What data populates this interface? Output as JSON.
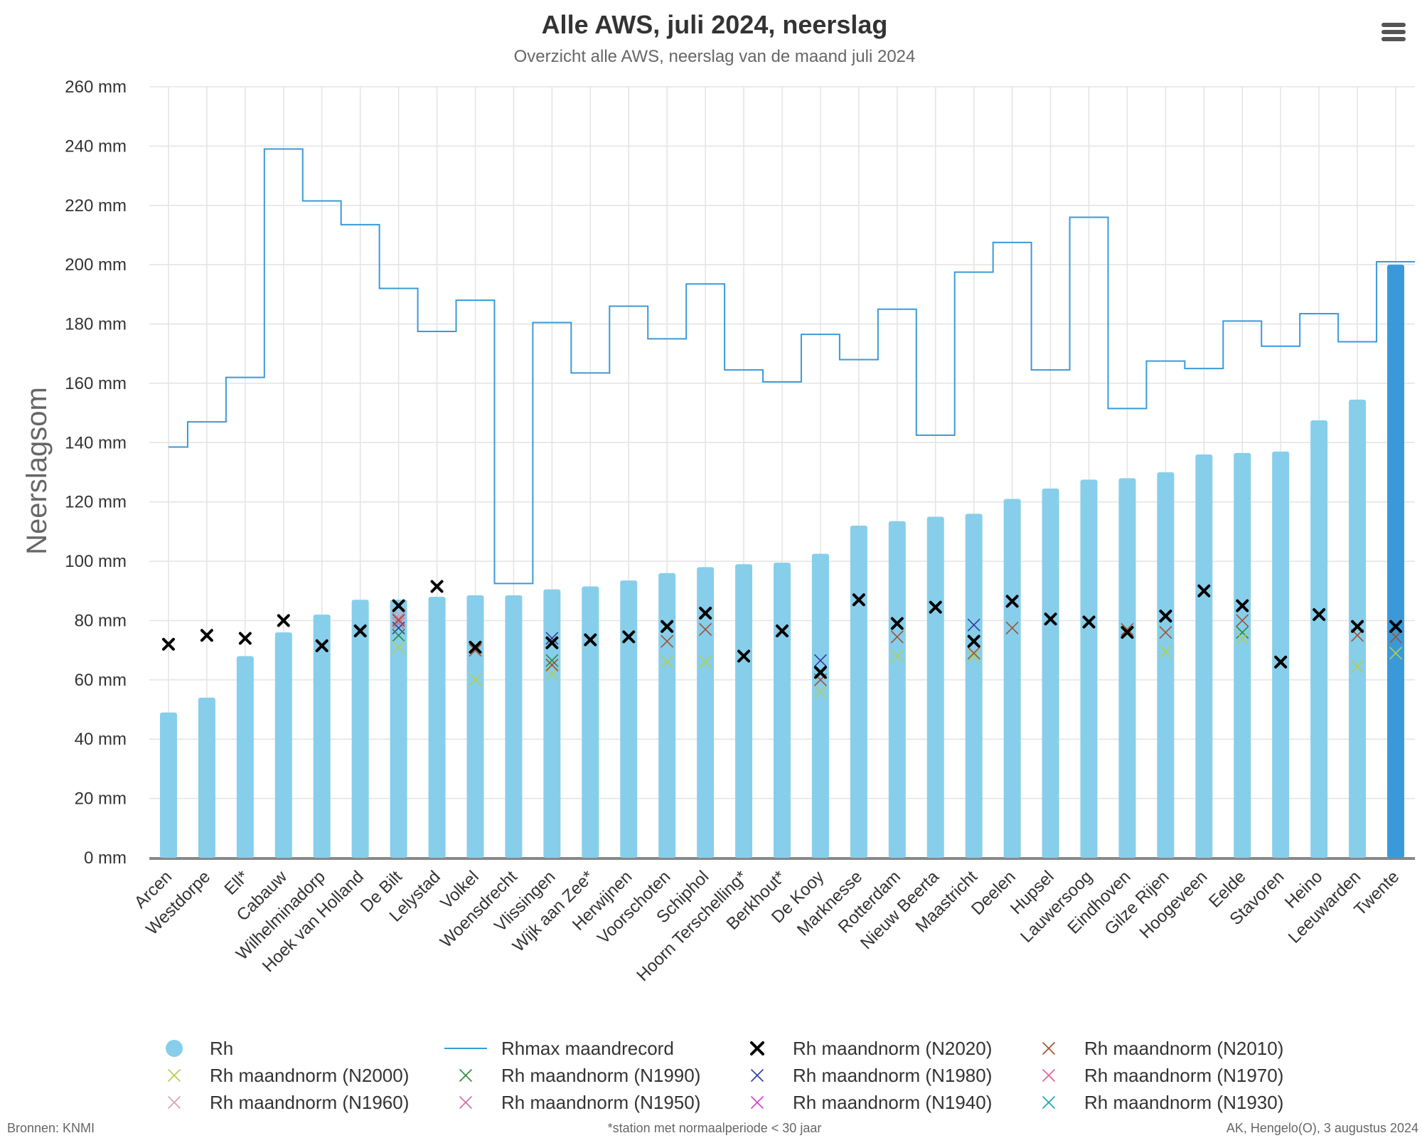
{
  "menu_icon": "hamburger-menu-icon",
  "colors": {
    "bar": "#87ceeb",
    "bar_highlight": "#3a9ad9",
    "record_line": "#3a9ad9",
    "grid": "#e3e3e3"
  },
  "chart_data": {
    "type": "bar",
    "title": "Alle AWS, juli 2024, neerslag",
    "subtitle": "Overzicht alle AWS, neerslag van de maand juli 2024",
    "ylabel": "Neerslagsom",
    "ylim": [
      0,
      260
    ],
    "y_ticks": [
      "0 mm",
      "20 mm",
      "40 mm",
      "60 mm",
      "80 mm",
      "100 mm",
      "120 mm",
      "140 mm",
      "160 mm",
      "180 mm",
      "200 mm",
      "220 mm",
      "240 mm",
      "260 mm"
    ],
    "grid": true,
    "legend_position": "bottom",
    "highlighted_category": "Twente",
    "categories": [
      "Arcen",
      "Westdorpe",
      "Ell*",
      "Cabauw",
      "Wilhelminadorp",
      "Hoek van Holland",
      "De Bilt",
      "Lelystad",
      "Volkel",
      "Woensdrecht",
      "Vlissingen",
      "Wijk aan Zee*",
      "Herwijnen",
      "Voorschoten",
      "Schiphol",
      "Hoorn Terschelling*",
      "Berkhout*",
      "De Kooy",
      "Marknesse",
      "Rotterdam",
      "Nieuw Beerta",
      "Maastricht",
      "Deelen",
      "Hupsel",
      "Lauwersoog",
      "Eindhoven",
      "Gilze Rijen",
      "Hoogeveen",
      "Eelde",
      "Stavoren",
      "Heino",
      "Leeuwarden",
      "Twente"
    ],
    "series": [
      {
        "name": "Rh",
        "kind": "bar",
        "color": "#87ceeb",
        "values": [
          49,
          54,
          68,
          76,
          82,
          87,
          87,
          88,
          88.5,
          88.5,
          90.5,
          91.5,
          93.5,
          96,
          98,
          99,
          99.5,
          102.5,
          112,
          113.5,
          115,
          116,
          121,
          124.5,
          127.5,
          128,
          130,
          136,
          136.5,
          137,
          147.5,
          154.5,
          200
        ]
      },
      {
        "name": "Rhmax maandrecord",
        "kind": "step-line",
        "color": "#3a9ad9",
        "values": [
          138.5,
          147,
          162,
          239,
          221.5,
          213.5,
          192,
          177.5,
          188,
          92.5,
          180.5,
          163.5,
          186,
          175,
          193.5,
          164.5,
          160.5,
          176.5,
          168,
          185,
          142.5,
          197.5,
          207.5,
          164.5,
          216,
          151.5,
          167.5,
          165,
          181,
          172.5,
          183.5,
          174,
          201
        ]
      },
      {
        "name": "Rh maandnorm (N2020)",
        "kind": "marker",
        "color": "#000000",
        "values": [
          72,
          75,
          74,
          80,
          71.5,
          76.5,
          85,
          91.5,
          71,
          null,
          72.5,
          73.5,
          74.5,
          78,
          82.5,
          68,
          76.5,
          62.5,
          87,
          79,
          84.5,
          73,
          86.5,
          80.5,
          79.5,
          76,
          81.5,
          90,
          85,
          66,
          82,
          78,
          78
        ]
      },
      {
        "name": "Rh maandnorm (N2010)",
        "kind": "marker",
        "color": "#a0522d",
        "values": [
          null,
          null,
          null,
          null,
          null,
          null,
          80,
          null,
          70,
          null,
          65,
          null,
          null,
          73,
          77,
          null,
          null,
          60,
          null,
          74.5,
          null,
          69,
          77.5,
          null,
          null,
          77,
          76,
          null,
          80,
          null,
          null,
          75,
          74.5
        ]
      },
      {
        "name": "Rh maandnorm (N2000)",
        "kind": "marker",
        "color": "#b4cf4c",
        "values": [
          null,
          null,
          null,
          null,
          null,
          null,
          71,
          null,
          60,
          null,
          62,
          null,
          null,
          66,
          66,
          null,
          null,
          56,
          null,
          68,
          null,
          68,
          null,
          null,
          null,
          null,
          69.5,
          null,
          74,
          null,
          null,
          64.5,
          69
        ]
      },
      {
        "name": "Rh maandnorm (N1990)",
        "kind": "marker",
        "color": "#2e8b3a",
        "values": [
          null,
          null,
          null,
          null,
          null,
          null,
          75,
          null,
          null,
          null,
          66.5,
          null,
          null,
          null,
          null,
          null,
          null,
          null,
          null,
          null,
          null,
          null,
          null,
          null,
          null,
          null,
          null,
          null,
          76,
          null,
          null,
          null,
          null
        ]
      },
      {
        "name": "Rh maandnorm (N1980)",
        "kind": "marker",
        "color": "#2f3c9e",
        "values": [
          null,
          null,
          null,
          null,
          null,
          null,
          77.5,
          null,
          null,
          null,
          74,
          null,
          null,
          null,
          null,
          null,
          null,
          66.5,
          null,
          null,
          null,
          78.5,
          null,
          null,
          null,
          null,
          null,
          null,
          null,
          null,
          null,
          null,
          null
        ]
      },
      {
        "name": "Rh maandnorm (N1970)",
        "kind": "marker",
        "color": "#e0609a",
        "values": [
          null,
          null,
          null,
          null,
          null,
          null,
          80.5,
          null,
          null,
          null,
          null,
          null,
          null,
          null,
          null,
          null,
          null,
          null,
          null,
          null,
          null,
          null,
          null,
          null,
          null,
          null,
          null,
          null,
          null,
          null,
          null,
          null,
          null
        ]
      },
      {
        "name": "Rh maandnorm (N1960)",
        "kind": "marker",
        "color": "#d9a0b0",
        "values": [
          null,
          null,
          null,
          null,
          null,
          null,
          82,
          null,
          null,
          null,
          null,
          null,
          null,
          null,
          null,
          null,
          null,
          null,
          null,
          null,
          null,
          null,
          null,
          null,
          null,
          null,
          null,
          null,
          null,
          null,
          null,
          null,
          null
        ]
      },
      {
        "name": "Rh maandnorm (N1950)",
        "kind": "marker",
        "color": "#d070a0",
        "values": [
          null,
          null,
          null,
          null,
          null,
          null,
          79,
          null,
          null,
          null,
          null,
          null,
          null,
          null,
          null,
          null,
          null,
          null,
          null,
          null,
          null,
          null,
          null,
          null,
          null,
          null,
          null,
          null,
          null,
          null,
          null,
          null,
          null
        ]
      },
      {
        "name": "Rh maandnorm (N1940)",
        "kind": "marker",
        "color": "#cc44cc",
        "values": [
          null,
          null,
          null,
          null,
          null,
          null,
          null,
          null,
          null,
          null,
          null,
          null,
          null,
          null,
          null,
          null,
          null,
          null,
          null,
          null,
          null,
          null,
          null,
          null,
          null,
          null,
          null,
          null,
          null,
          null,
          null,
          null,
          null
        ]
      },
      {
        "name": "Rh maandnorm (N1930)",
        "kind": "marker",
        "color": "#1aa5b8",
        "values": [
          null,
          null,
          null,
          null,
          null,
          null,
          null,
          null,
          null,
          null,
          null,
          null,
          null,
          null,
          null,
          null,
          null,
          null,
          null,
          null,
          null,
          null,
          null,
          null,
          null,
          null,
          null,
          null,
          null,
          null,
          null,
          null,
          null
        ]
      }
    ]
  },
  "footer": {
    "source": "Bronnen: KNMI",
    "note": "*station met normaalperiode < 30 jaar",
    "credit": "AK, Hengelo(O), 3 augustus 2024"
  }
}
